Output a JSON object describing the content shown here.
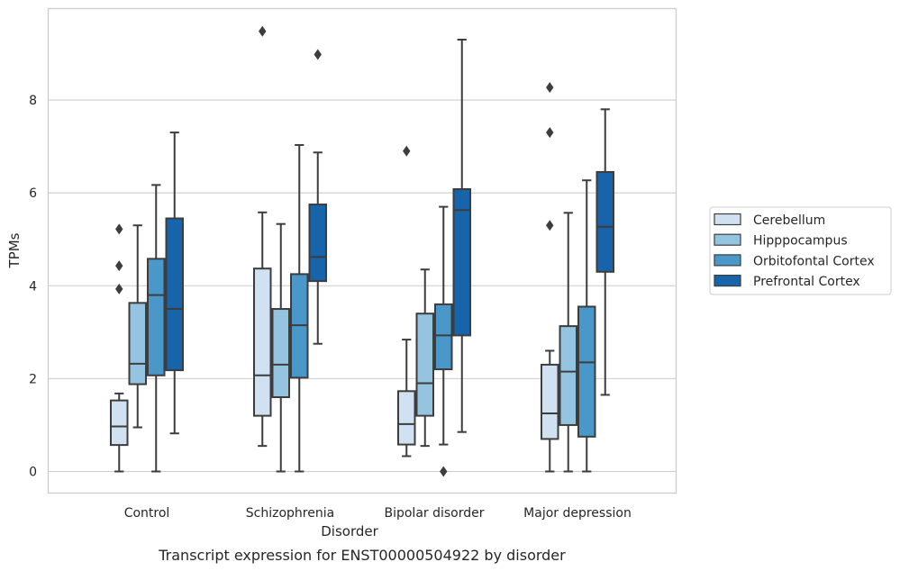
{
  "chart_data": {
    "type": "box",
    "xlabel": "Disorder",
    "ylabel": "TPMs",
    "caption": "Transcript expression for ENST00000504922 by disorder",
    "categories": [
      "Control",
      "Schizophrenia",
      "Bipolar disorder",
      "Major depression"
    ],
    "ylim": [
      -0.45,
      9.9
    ],
    "yticks": [
      0,
      2,
      4,
      6,
      8
    ],
    "grid": "horizontal",
    "legend_position": "right",
    "series": [
      {
        "name": "Cerebellum",
        "color": "#d0e1f2",
        "boxes": [
          {
            "whisker_low": 0.0,
            "q1": 0.57,
            "median": 0.97,
            "q3": 1.53,
            "whisker_high": 1.68,
            "outliers": [
              3.93,
              4.43,
              5.22
            ]
          },
          {
            "whisker_low": 0.55,
            "q1": 1.2,
            "median": 2.07,
            "q3": 4.37,
            "whisker_high": 5.58,
            "outliers": []
          },
          {
            "whisker_low": 0.33,
            "q1": 0.58,
            "median": 1.02,
            "q3": 1.73,
            "whisker_high": 2.84,
            "outliers": [
              6.9
            ]
          },
          {
            "whisker_low": 0.0,
            "q1": 0.7,
            "median": 1.25,
            "q3": 2.3,
            "whisker_high": 2.6,
            "outliers": [
              5.3,
              7.3,
              8.27
            ]
          }
        ]
      },
      {
        "name": "Hipppocampus",
        "color": "#94c4df",
        "boxes": [
          {
            "whisker_low": 0.95,
            "q1": 1.88,
            "median": 2.32,
            "q3": 3.63,
            "whisker_high": 5.3,
            "outliers": []
          },
          {
            "whisker_low": 0.0,
            "q1": 1.6,
            "median": 2.3,
            "q3": 3.5,
            "whisker_high": 5.33,
            "outliers": []
          },
          {
            "whisker_low": 0.55,
            "q1": 1.2,
            "median": 1.9,
            "q3": 3.4,
            "whisker_high": 4.35,
            "outliers": []
          },
          {
            "whisker_low": 0.0,
            "q1": 1.0,
            "median": 2.15,
            "q3": 3.13,
            "whisker_high": 5.57,
            "outliers": []
          }
        ]
      },
      {
        "name": "Orbitofontal Cortex",
        "color": "#4a98c9",
        "boxes": [
          {
            "whisker_low": 0.0,
            "q1": 2.07,
            "median": 3.8,
            "q3": 4.58,
            "whisker_high": 6.17,
            "outliers": []
          },
          {
            "whisker_low": 0.0,
            "q1": 2.02,
            "median": 3.15,
            "q3": 4.25,
            "whisker_high": 7.03,
            "outliers": []
          },
          {
            "whisker_low": 0.58,
            "q1": 2.2,
            "median": 2.93,
            "q3": 3.6,
            "whisker_high": 5.7,
            "outliers": [
              0.0
            ]
          },
          {
            "whisker_low": 0.0,
            "q1": 0.75,
            "median": 2.35,
            "q3": 3.55,
            "whisker_high": 6.27,
            "outliers": []
          }
        ]
      },
      {
        "name": "Prefrontal Cortex",
        "color": "#1764ab",
        "boxes": [
          {
            "whisker_low": 0.82,
            "q1": 2.18,
            "median": 3.5,
            "q3": 5.45,
            "whisker_high": 7.3,
            "outliers": []
          },
          {
            "whisker_low": 2.75,
            "q1": 4.1,
            "median": 4.62,
            "q3": 5.75,
            "whisker_high": 6.87,
            "outliers": [
              8.98
            ]
          },
          {
            "whisker_low": 0.85,
            "q1": 2.93,
            "median": 5.63,
            "q3": 6.08,
            "whisker_high": 9.3,
            "outliers": []
          },
          {
            "whisker_low": 1.65,
            "q1": 4.3,
            "median": 5.27,
            "q3": 6.45,
            "whisker_high": 7.8,
            "outliers": []
          }
        ]
      }
    ],
    "extra_outliers": [
      {
        "category": "Schizophrenia",
        "series": "Cerebellum",
        "value": 9.48
      }
    ]
  }
}
